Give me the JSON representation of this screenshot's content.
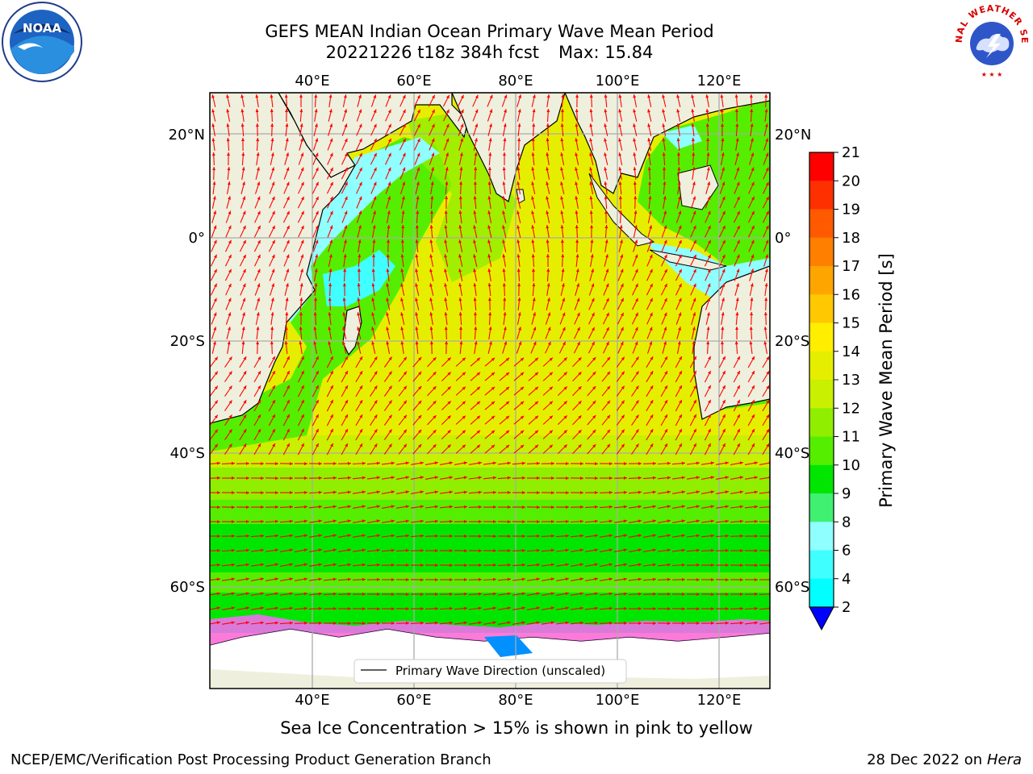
{
  "header": {
    "title_line1": "GEFS MEAN Indian Ocean Primary Wave Mean Period",
    "title_line2_left": "20221226 t18z 384h fcst",
    "title_line2_right": "Max: 15.84"
  },
  "logos": {
    "left": {
      "icon": "noaa-logo",
      "text": "NOAA"
    },
    "right": {
      "icon": "nws-logo",
      "text": "NATIONAL WEATHER SERVICE"
    }
  },
  "map": {
    "lon_ticks": [
      "40°E",
      "60°E",
      "80°E",
      "100°E",
      "120°E"
    ],
    "lat_ticks": [
      "20°N",
      "0°",
      "20°S",
      "40°S",
      "60°S"
    ],
    "legend_label": "Primary Wave Direction (unscaled)",
    "colors": {
      "land": "#efefdd",
      "ocean_main": "#e6ee00",
      "vector": "#ff0000",
      "ice": "#ff66ff"
    }
  },
  "colorbar": {
    "label": "Primary Wave Mean Period [s]",
    "ticks": [
      "21",
      "20",
      "19",
      "18",
      "17",
      "16",
      "15",
      "14",
      "13",
      "12",
      "11",
      "10",
      "9",
      "8",
      "6",
      "4",
      "2"
    ],
    "colors": [
      "#ff0000",
      "#ff3000",
      "#ff5a00",
      "#ff7f00",
      "#ffa500",
      "#ffc800",
      "#ffee00",
      "#e6ee00",
      "#c8f000",
      "#90ee00",
      "#55ee00",
      "#00e600",
      "#40f070",
      "#90ffff",
      "#40ffff",
      "#00ffff",
      "#0090ff",
      "#0000ff"
    ]
  },
  "footer": {
    "sea_ice_note": "Sea Ice Concentration > 15% is shown in pink to yellow",
    "credit": "NCEP/EMC/Verification Post Processing Product Generation Branch",
    "date": "28 Dec 2022 on",
    "machine": "Hera"
  }
}
